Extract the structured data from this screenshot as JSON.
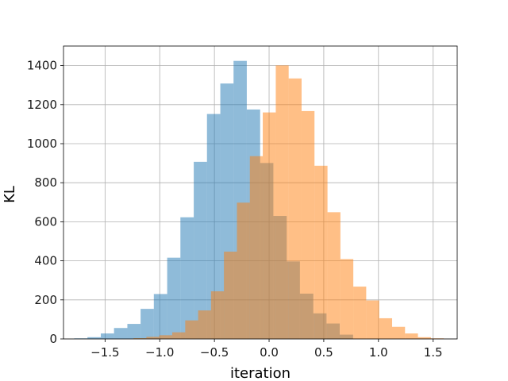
{
  "chart_data": {
    "type": "histogram",
    "title": "",
    "xlabel": "iteration",
    "ylabel": "KL",
    "xlim": [
      -1.88,
      1.72
    ],
    "ylim": [
      0,
      1500
    ],
    "xticks": [
      -1.5,
      -1.0,
      -0.5,
      0.0,
      0.5,
      1.0,
      1.5
    ],
    "xtick_labels": [
      "−1.5",
      "−1.0",
      "−0.5",
      "0.0",
      "0.5",
      "1.0",
      "1.5"
    ],
    "yticks": [
      0,
      200,
      400,
      600,
      800,
      1000,
      1200,
      1400
    ],
    "ytick_labels": [
      "0",
      "200",
      "400",
      "600",
      "800",
      "1000",
      "1200",
      "1400"
    ],
    "grid": true,
    "alpha": 0.5,
    "series": [
      {
        "color": "#1f77b4",
        "bin_edges": [
          -1.782,
          -1.661,
          -1.539,
          -1.418,
          -1.296,
          -1.175,
          -1.054,
          -0.932,
          -0.811,
          -0.689,
          -0.568,
          -0.446,
          -0.325,
          -0.204,
          -0.082,
          0.039,
          0.161,
          0.282,
          0.404,
          0.525,
          0.646,
          0.768
        ],
        "counts": [
          3,
          9,
          28,
          56,
          77,
          154,
          230,
          416,
          623,
          907,
          1152,
          1308,
          1424,
          1175,
          901,
          630,
          397,
          232,
          131,
          79,
          22
        ]
      },
      {
        "color": "#ff7f0e",
        "bin_edges": [
          -1.24,
          -1.122,
          -1.004,
          -0.886,
          -0.767,
          -0.649,
          -0.531,
          -0.413,
          -0.294,
          -0.176,
          -0.058,
          0.061,
          0.179,
          0.297,
          0.415,
          0.534,
          0.652,
          0.77,
          0.888,
          1.007,
          1.125,
          1.243,
          1.361,
          1.48,
          1.598
        ],
        "counts": [
          4,
          11,
          19,
          34,
          95,
          146,
          244,
          447,
          698,
          936,
          1160,
          1401,
          1334,
          1167,
          887,
          649,
          409,
          268,
          197,
          106,
          62,
          28,
          9,
          3
        ]
      }
    ]
  }
}
